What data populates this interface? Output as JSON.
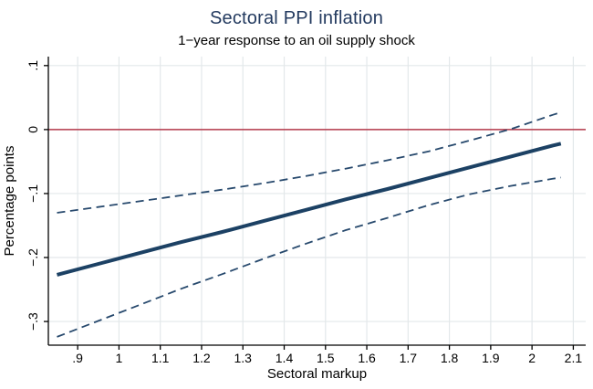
{
  "title": "Sectoral PPI inflation",
  "subtitle": "1−year response to an oil supply shock",
  "chart_data": {
    "type": "line",
    "title": "Sectoral PPI inflation",
    "subtitle": "1−year response to an oil supply shock",
    "xlabel": "Sectoral markup",
    "ylabel": "Percentage points",
    "xlim": [
      0.829,
      2.13
    ],
    "ylim": [
      -0.337,
      0.114
    ],
    "grid": true,
    "legend": "none",
    "x_ticks": {
      "values": [
        0.9,
        1.0,
        1.1,
        1.2,
        1.3,
        1.4,
        1.5,
        1.6,
        1.7,
        1.8,
        1.9,
        2.0,
        2.1
      ],
      "labels": [
        ".9",
        "1",
        "1.1",
        "1.2",
        "1.3",
        "1.4",
        "1.5",
        "1.6",
        "1.7",
        "1.8",
        "1.9",
        "2",
        "2.1"
      ]
    },
    "y_ticks": {
      "values": [
        0.1,
        0.0,
        -0.1,
        -0.2,
        -0.3
      ],
      "labels": [
        ".1",
        "0",
        "−.1",
        "−.2",
        "−.3"
      ],
      "rotated": true
    },
    "reference_line": {
      "y": 0,
      "color": "#b5384a"
    },
    "series": [
      {
        "name": "point-estimate",
        "style": "solid",
        "color": "#1c4164",
        "width": 4,
        "x": [
          0.85,
          0.95,
          1.05,
          1.15,
          1.25,
          1.35,
          1.45,
          1.55,
          1.65,
          1.75,
          1.85,
          1.95,
          2.05,
          2.07
        ],
        "y": [
          -0.227,
          -0.21,
          -0.193,
          -0.176,
          -0.16,
          -0.143,
          -0.126,
          -0.109,
          -0.093,
          -0.076,
          -0.059,
          -0.042,
          -0.025,
          -0.022
        ]
      },
      {
        "name": "ci-upper",
        "style": "dashed",
        "color": "#27496d",
        "width": 1.8,
        "x": [
          0.85,
          0.95,
          1.05,
          1.15,
          1.25,
          1.35,
          1.45,
          1.55,
          1.65,
          1.75,
          1.85,
          1.95,
          2.05,
          2.07
        ],
        "y": [
          -0.13,
          -0.121,
          -0.112,
          -0.103,
          -0.094,
          -0.084,
          -0.073,
          -0.061,
          -0.048,
          -0.034,
          -0.017,
          0.001,
          0.023,
          0.027
        ]
      },
      {
        "name": "ci-lower",
        "style": "dashed",
        "color": "#27496d",
        "width": 1.8,
        "x": [
          0.85,
          0.95,
          1.05,
          1.15,
          1.25,
          1.35,
          1.45,
          1.55,
          1.65,
          1.75,
          1.85,
          1.95,
          2.05,
          2.07
        ],
        "y": [
          -0.324,
          -0.299,
          -0.274,
          -0.249,
          -0.226,
          -0.202,
          -0.179,
          -0.157,
          -0.138,
          -0.118,
          -0.101,
          -0.088,
          -0.077,
          -0.075
        ]
      }
    ],
    "colors": {
      "title": "#233a5f",
      "line_navy": "#1c4164",
      "zero_line_red": "#b5384a",
      "gridline": "#e3e8ea",
      "axis": "#000000"
    }
  }
}
